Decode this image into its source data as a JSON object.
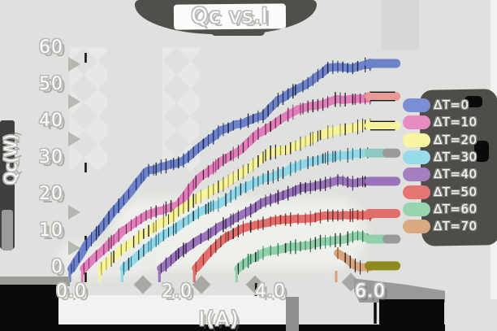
{
  "page": {
    "background": "#dfe1de",
    "shadow_color": "#514f4c",
    "black": "#0a0a0a"
  },
  "title": {
    "text": "Qc vs.I"
  },
  "axes": {
    "x": {
      "label": "I(A)",
      "tick_labels": [
        "0.0",
        "2.0",
        "4.0",
        "6.0"
      ],
      "tick_values": [
        0,
        2,
        4,
        6
      ]
    },
    "y": {
      "label": "Qc(W)",
      "tick_labels": [
        "0",
        "10",
        "20",
        "30",
        "40",
        "50",
        "60"
      ],
      "tick_values": [
        0,
        10,
        20,
        30,
        40,
        50,
        60
      ]
    }
  },
  "chart_data": {
    "type": "line",
    "title": "Qc vs.I",
    "xlabel": "I(A)",
    "ylabel": "Qc(W)",
    "xlim": [
      0,
      6.6
    ],
    "ylim": [
      0,
      60
    ],
    "x_ticks": [
      0,
      2,
      4,
      6
    ],
    "y_ticks": [
      0,
      10,
      20,
      30,
      40,
      50,
      60
    ],
    "grid": false,
    "legend_position": "right",
    "style": "sketchy-thick-lines-with-vertical-hatching",
    "series": [
      {
        "name": "ΔT=0",
        "color": "#6e82ca",
        "legend_color": "#7c8ed3",
        "dark": "#1c2a66",
        "end_value": 56,
        "stub": {
          "color": "#6e82ca",
          "edge": false,
          "tip": false
        },
        "points": [
          [
            0,
            0
          ],
          [
            0.3,
            6.5
          ],
          [
            0.85,
            16
          ],
          [
            1.5,
            26.5
          ],
          [
            2.2,
            29
          ],
          [
            2.6,
            33.5
          ],
          [
            3.0,
            37.5
          ],
          [
            3.5,
            40
          ],
          [
            3.85,
            41.5
          ],
          [
            4.15,
            46
          ],
          [
            4.5,
            49
          ],
          [
            4.85,
            52
          ],
          [
            5.15,
            55
          ],
          [
            5.65,
            55
          ],
          [
            6,
            56
          ]
        ]
      },
      {
        "name": "ΔT=10",
        "color": "#e07fb9",
        "legend_color": "#e78cc2",
        "dark": "#7c1f5a",
        "end_value": 47,
        "stub": {
          "color": "#e99a94",
          "edge": true,
          "tip": false
        },
        "points": [
          [
            0.25,
            0
          ],
          [
            0.6,
            5
          ],
          [
            1.0,
            10
          ],
          [
            1.5,
            14.5
          ],
          [
            2.15,
            17.5
          ],
          [
            2.55,
            25
          ],
          [
            3.0,
            29.5
          ],
          [
            3.4,
            32
          ],
          [
            3.75,
            36.5
          ],
          [
            4.15,
            40
          ],
          [
            4.55,
            43.5
          ],
          [
            4.95,
            45
          ],
          [
            5.35,
            46.5
          ],
          [
            6,
            47
          ]
        ]
      },
      {
        "name": "ΔT=20",
        "color": "#f7f39c",
        "legend_color": "#f8f5a3",
        "dark": "#8a8420",
        "end_value": 39,
        "stub": {
          "color": "#f7f39c",
          "edge": true,
          "tip": false
        },
        "points": [
          [
            0.6,
            0
          ],
          [
            1.0,
            5
          ],
          [
            1.45,
            9.5
          ],
          [
            1.9,
            13
          ],
          [
            2.3,
            17
          ],
          [
            2.65,
            20
          ],
          [
            3.05,
            23
          ],
          [
            3.45,
            26.5
          ],
          [
            3.95,
            31.5
          ],
          [
            4.35,
            33
          ],
          [
            4.75,
            35.5
          ],
          [
            5.15,
            37
          ],
          [
            5.55,
            38
          ],
          [
            6,
            39
          ]
        ]
      },
      {
        "name": "ΔT=30",
        "color": "#90d7e8",
        "legend_color": "#97dceb",
        "dark": "#17606f",
        "end_value": 31.5,
        "stub": {
          "color": "#8fc9c4",
          "edge": false,
          "tip": true
        },
        "points": [
          [
            1.05,
            0
          ],
          [
            1.4,
            4
          ],
          [
            1.85,
            8.5
          ],
          [
            2.3,
            13
          ],
          [
            2.7,
            16
          ],
          [
            3.0,
            17.5
          ],
          [
            3.45,
            21.5
          ],
          [
            3.85,
            24.5
          ],
          [
            4.25,
            26
          ],
          [
            4.65,
            28
          ],
          [
            5.05,
            29.5
          ],
          [
            5.5,
            30.5
          ],
          [
            6,
            31.5
          ]
        ]
      },
      {
        "name": "ΔT=40",
        "color": "#9a73ba",
        "legend_color": "#a37fc2",
        "dark": "#3c2260",
        "end_value": 23.8,
        "stub": {
          "color": "#9a73ba",
          "edge": false,
          "tip": false
        },
        "points": [
          [
            1.8,
            0
          ],
          [
            2.15,
            4
          ],
          [
            2.55,
            8
          ],
          [
            2.95,
            11.5
          ],
          [
            3.35,
            14.5
          ],
          [
            3.75,
            17.5
          ],
          [
            4.15,
            20
          ],
          [
            4.55,
            22
          ],
          [
            4.95,
            23
          ],
          [
            5.35,
            24
          ],
          [
            5.7,
            23.5
          ],
          [
            6,
            23.8
          ]
        ]
      },
      {
        "name": "ΔT=50",
        "color": "#e26e6b",
        "legend_color": "#e57673",
        "dark": "#8a1d1d",
        "end_value": 15,
        "stub": {
          "color": "#e26e6b",
          "edge": false,
          "tip": false
        },
        "points": [
          [
            2.5,
            0
          ],
          [
            2.8,
            4.5
          ],
          [
            3.1,
            8
          ],
          [
            3.45,
            10.5
          ],
          [
            3.85,
            12
          ],
          [
            4.25,
            13
          ],
          [
            4.65,
            14
          ],
          [
            5.05,
            14.5
          ],
          [
            5.5,
            15
          ],
          [
            6,
            15
          ]
        ]
      },
      {
        "name": "ΔT=60",
        "color": "#92cfab",
        "legend_color": "#99d4b1",
        "dark": "#1d6a45",
        "end_value": 8,
        "stub": {
          "color": "#92cfab",
          "edge": false,
          "tip": true
        },
        "points": [
          [
            3.35,
            0
          ],
          [
            3.6,
            2.5
          ],
          [
            3.9,
            4.5
          ],
          [
            4.25,
            5.5
          ],
          [
            4.65,
            6.5
          ],
          [
            5.05,
            7.5
          ],
          [
            5.45,
            8
          ],
          [
            5.75,
            9
          ],
          [
            6,
            8
          ]
        ]
      },
      {
        "name": "ΔT=70",
        "color": "#d8a57f",
        "legend_color": "#daa97f",
        "dark": "#8a5a28",
        "end_value": 0.7,
        "stub": {
          "color": "#8d8a1e",
          "edge": false,
          "tip": false
        },
        "points": [
          [
            5.35,
            4.3
          ],
          [
            5.5,
            3.2
          ],
          [
            5.65,
            1.6
          ],
          [
            5.8,
            0.4
          ],
          [
            6,
            0.7
          ]
        ]
      }
    ]
  }
}
